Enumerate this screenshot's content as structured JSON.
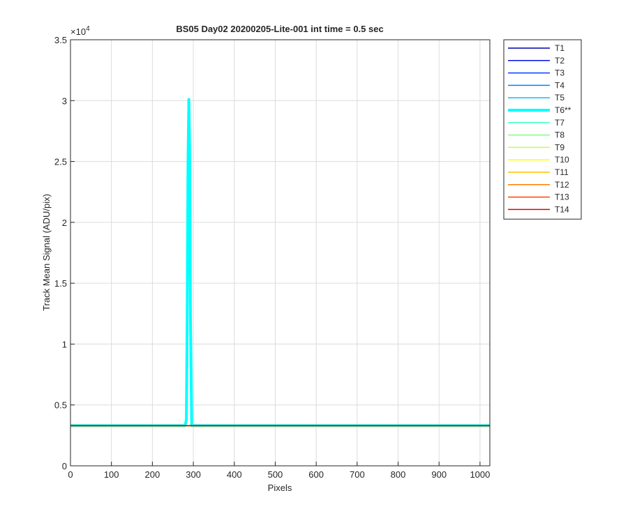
{
  "chart_data": {
    "type": "line",
    "title": "BS05 Day02 20200205-Lite-001 int time = 0.5 sec",
    "x_label": "Pixels",
    "y_label": "Track Mean Signal (ADU/pix)",
    "y_multiplier": {
      "base": "×10",
      "power": "4"
    },
    "xlim": [
      0,
      1024
    ],
    "ylim": [
      0,
      35000
    ],
    "xticks": [
      0,
      100,
      200,
      300,
      400,
      500,
      600,
      700,
      800,
      900,
      1000
    ],
    "yticks": [
      0,
      {
        "value": 5000,
        "label": "0.5"
      },
      {
        "value": 10000,
        "label": "1"
      },
      {
        "value": 15000,
        "label": "1.5"
      },
      {
        "value": 20000,
        "label": "2"
      },
      {
        "value": 25000,
        "label": "2.5"
      },
      {
        "value": 30000,
        "label": "3"
      },
      {
        "value": 35000,
        "label": "3.5"
      }
    ],
    "grid": true,
    "legend": "outside-top-right",
    "x": [
      1,
      280,
      283,
      285,
      287,
      289,
      291,
      293,
      296,
      1024
    ],
    "series": [
      {
        "name": "T1",
        "color": "#0000a8",
        "width": 1.5,
        "values": [
          3300,
          3300,
          3300,
          3300,
          3300,
          3300,
          3300,
          3300,
          3300,
          3300
        ]
      },
      {
        "name": "T2",
        "color": "#0010e0",
        "width": 1.5,
        "values": [
          3300,
          3300,
          3300,
          3300,
          3300,
          3300,
          3300,
          3300,
          3300,
          3300
        ]
      },
      {
        "name": "T3",
        "color": "#0040ff",
        "width": 1.5,
        "values": [
          3300,
          3300,
          3300,
          3300,
          3300,
          3300,
          3300,
          3300,
          3300,
          3300
        ]
      },
      {
        "name": "T4",
        "color": "#0080ff",
        "width": 1.5,
        "values": [
          3300,
          3300,
          3300,
          3300,
          3300,
          3300,
          3300,
          3300,
          3300,
          3300
        ]
      },
      {
        "name": "T5",
        "color": "#00c0ff",
        "width": 1.5,
        "values": [
          3300,
          3300,
          3300,
          3300,
          3300,
          3300,
          3300,
          3300,
          3300,
          3300
        ]
      },
      {
        "name": "T6**",
        "color": "#00ffff",
        "width": 4,
        "values": [
          3300,
          3300,
          3800,
          12000,
          25000,
          30100,
          26000,
          12000,
          3300,
          3300
        ]
      },
      {
        "name": "T7",
        "color": "#40ffc0",
        "width": 1.5,
        "values": [
          3300,
          3300,
          3300,
          3300,
          3300,
          3300,
          3300,
          3300,
          3300,
          3300
        ]
      },
      {
        "name": "T8",
        "color": "#80ff80",
        "width": 1.5,
        "values": [
          3300,
          3300,
          3300,
          3300,
          3300,
          3300,
          3300,
          3300,
          3300,
          3300
        ]
      },
      {
        "name": "T9",
        "color": "#c0ff40",
        "width": 1.5,
        "values": [
          3300,
          3300,
          3300,
          3300,
          3300,
          3300,
          3300,
          3300,
          3300,
          3300
        ]
      },
      {
        "name": "T10",
        "color": "#ffff00",
        "width": 1.5,
        "values": [
          3300,
          3300,
          3300,
          3300,
          3300,
          3300,
          3300,
          3300,
          3300,
          3300
        ]
      },
      {
        "name": "T11",
        "color": "#ffc000",
        "width": 1.5,
        "values": [
          3300,
          3300,
          3300,
          3300,
          3300,
          3300,
          3300,
          3300,
          3300,
          3300
        ]
      },
      {
        "name": "T12",
        "color": "#ff8000",
        "width": 1.5,
        "values": [
          3300,
          3300,
          3300,
          3300,
          3300,
          3300,
          3300,
          3300,
          3300,
          3300
        ]
      },
      {
        "name": "T13",
        "color": "#ff4000",
        "width": 1.5,
        "values": [
          3300,
          3300,
          3300,
          3300,
          3300,
          3300,
          3300,
          3300,
          3300,
          3300
        ]
      },
      {
        "name": "T14",
        "color": "#e00000",
        "width": 1.5,
        "values": [
          3300,
          3300,
          3300,
          3300,
          3300,
          3300,
          3300,
          3300,
          3300,
          3300
        ]
      }
    ]
  }
}
